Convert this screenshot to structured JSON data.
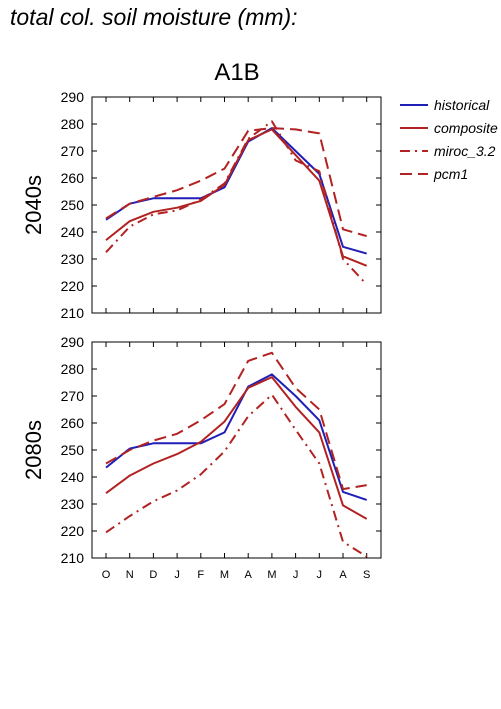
{
  "page_title": "total col. soil moisture (mm):",
  "chart_data": {
    "type": "line",
    "title": "A1B",
    "categories": [
      "O",
      "N",
      "D",
      "J",
      "F",
      "M",
      "A",
      "M",
      "J",
      "J",
      "A",
      "S"
    ],
    "ylim": [
      210,
      290
    ],
    "yticks": [
      210,
      220,
      230,
      240,
      250,
      260,
      270,
      280,
      290
    ],
    "grid": false,
    "legend_position": "right",
    "legend": [
      {
        "name": "historical",
        "color": "#1f1fb8",
        "dash": "solid"
      },
      {
        "name": "composite",
        "color": "#b22222",
        "dash": "solid"
      },
      {
        "name": "miroc_3.2",
        "color": "#b22222",
        "dash": "dashdot"
      },
      {
        "name": "pcm1",
        "color": "#b22222",
        "dash": "dashed"
      }
    ],
    "panels": [
      {
        "ylabel": "2040s",
        "series": [
          {
            "name": "historical",
            "values": [
              244.5,
              250.5,
              252.5,
              252.5,
              252.5,
              256.5,
              273.5,
              278.5,
              270,
              261.5,
              234.5,
              232
            ]
          },
          {
            "name": "composite",
            "values": [
              237,
              244,
              247.5,
              249,
              251.5,
              257.5,
              274,
              278,
              268.5,
              259,
              231,
              227.5
            ]
          },
          {
            "name": "miroc_3.2",
            "values": [
              232.5,
              242,
              246.5,
              248,
              252,
              258,
              274.5,
              281,
              266.5,
              262.5,
              230,
              220.5
            ]
          },
          {
            "name": "pcm1",
            "values": [
              245,
              250.5,
              253,
              255.5,
              259,
              263.5,
              277.5,
              278.5,
              278,
              276.5,
              241,
              238.5
            ]
          }
        ]
      },
      {
        "ylabel": "2080s",
        "series": [
          {
            "name": "historical",
            "values": [
              243.5,
              250.5,
              252.5,
              252.5,
              252.5,
              256.5,
              273.5,
              278,
              270,
              261,
              234.5,
              231.5
            ]
          },
          {
            "name": "composite",
            "values": [
              234,
              240.5,
              245,
              248.5,
              253,
              260.5,
              273,
              277,
              266,
              256.5,
              229.5,
              224.5
            ]
          },
          {
            "name": "miroc_3.2",
            "values": [
              219.5,
              225.5,
              231,
              235,
              241,
              249.5,
              262.5,
              270.5,
              257.5,
              245,
              216,
              210.5
            ]
          },
          {
            "name": "pcm1",
            "values": [
              245,
              250,
              253.5,
              256,
              261,
              267,
              283,
              286,
              273,
              265,
              235.5,
              237
            ]
          }
        ]
      }
    ]
  }
}
